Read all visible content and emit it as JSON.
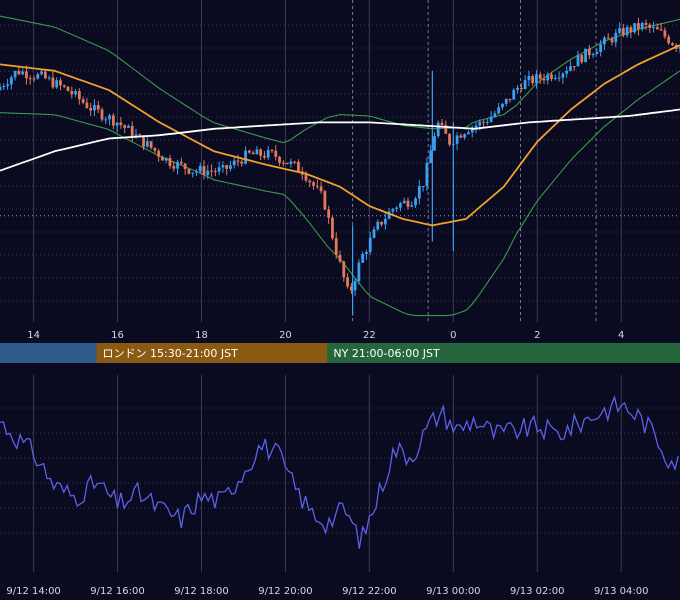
{
  "colors": {
    "background": "#0a0a20",
    "candle_up": "#3aa0f0",
    "candle_down": "#e07a5a",
    "bollinger": "#3a9a4a",
    "ma_mid": "#f0a030",
    "ma_long": "#ffffff",
    "rsi_line": "#5a62e8",
    "grid": "#3a3a55",
    "session_tokyo": "#2e5b8c",
    "session_london": "#8a5a12",
    "session_ny": "#25663d"
  },
  "chart_data": [
    {
      "type": "candlestick",
      "title": "",
      "indicators": [
        "bollinger-bands",
        "moving-average",
        "long-moving-average"
      ],
      "grid": true,
      "x_tick_labels": [
        "14",
        "16",
        "18",
        "20",
        "22",
        "0",
        "2",
        "4"
      ],
      "x_ticks_hours": [
        14,
        16,
        18,
        20,
        22,
        24,
        26,
        28
      ],
      "x_range_hours": [
        13.2,
        29.4
      ],
      "price_path": [
        [
          13.2,
          0.72
        ],
        [
          13.7,
          0.78
        ],
        [
          14.3,
          0.76
        ],
        [
          14.9,
          0.72
        ],
        [
          15.5,
          0.66
        ],
        [
          16.1,
          0.62
        ],
        [
          16.7,
          0.56
        ],
        [
          17.3,
          0.5
        ],
        [
          17.9,
          0.47
        ],
        [
          18.6,
          0.47
        ],
        [
          19.2,
          0.52
        ],
        [
          19.8,
          0.52
        ],
        [
          20.5,
          0.47
        ],
        [
          21.0,
          0.38
        ],
        [
          21.3,
          0.22
        ],
        [
          21.6,
          0.08
        ],
        [
          21.9,
          0.2
        ],
        [
          22.3,
          0.3
        ],
        [
          22.7,
          0.36
        ],
        [
          23.1,
          0.38
        ],
        [
          23.4,
          0.44
        ],
        [
          23.7,
          0.62
        ],
        [
          24.0,
          0.56
        ],
        [
          24.4,
          0.6
        ],
        [
          24.8,
          0.62
        ],
        [
          25.2,
          0.66
        ],
        [
          25.7,
          0.74
        ],
        [
          26.2,
          0.76
        ],
        [
          26.7,
          0.78
        ],
        [
          27.1,
          0.82
        ],
        [
          27.6,
          0.86
        ],
        [
          28.1,
          0.9
        ],
        [
          28.6,
          0.92
        ],
        [
          29.0,
          0.9
        ],
        [
          29.4,
          0.86
        ]
      ],
      "ma_path": [
        [
          13.2,
          0.8
        ],
        [
          14.5,
          0.78
        ],
        [
          15.8,
          0.72
        ],
        [
          17.0,
          0.62
        ],
        [
          18.3,
          0.53
        ],
        [
          19.5,
          0.49
        ],
        [
          20.5,
          0.46
        ],
        [
          21.3,
          0.42
        ],
        [
          22.0,
          0.36
        ],
        [
          22.8,
          0.32
        ],
        [
          23.5,
          0.3
        ],
        [
          24.3,
          0.32
        ],
        [
          25.2,
          0.42
        ],
        [
          26.0,
          0.56
        ],
        [
          26.8,
          0.66
        ],
        [
          27.6,
          0.74
        ],
        [
          28.4,
          0.8
        ],
        [
          29.4,
          0.86
        ]
      ],
      "long_ma_path": [
        [
          13.2,
          0.47
        ],
        [
          14.5,
          0.53
        ],
        [
          15.8,
          0.57
        ],
        [
          17.0,
          0.58
        ],
        [
          18.3,
          0.6
        ],
        [
          19.5,
          0.61
        ],
        [
          20.8,
          0.62
        ],
        [
          22.0,
          0.62
        ],
        [
          23.3,
          0.61
        ],
        [
          24.5,
          0.6
        ],
        [
          25.8,
          0.62
        ],
        [
          27.0,
          0.63
        ],
        [
          28.2,
          0.64
        ],
        [
          29.4,
          0.66
        ]
      ],
      "bollinger_width": [
        [
          13.2,
          0.15
        ],
        [
          16.0,
          0.12
        ],
        [
          18.0,
          0.09
        ],
        [
          20.0,
          0.08
        ],
        [
          21.0,
          0.2
        ],
        [
          22.0,
          0.28
        ],
        [
          23.5,
          0.3
        ],
        [
          24.5,
          0.28
        ],
        [
          25.5,
          0.2
        ],
        [
          27.0,
          0.15
        ],
        [
          29.4,
          0.08
        ]
      ],
      "horizontal_marker": 0.33
    },
    {
      "type": "line",
      "title": "",
      "series_color": "rsi_line",
      "grid": true,
      "x_tick_labels": [
        "9/12 14:00",
        "9/12 16:00",
        "9/12 18:00",
        "9/12 20:00",
        "9/12 22:00",
        "9/13 00:00",
        "9/13 02:00",
        "9/13 04:00"
      ],
      "x_ticks_hours": [
        14,
        16,
        18,
        20,
        22,
        24,
        26,
        28
      ],
      "value_path": [
        [
          13.2,
          0.75
        ],
        [
          13.6,
          0.66
        ],
        [
          14.0,
          0.58
        ],
        [
          14.5,
          0.4
        ],
        [
          15.0,
          0.34
        ],
        [
          15.5,
          0.42
        ],
        [
          16.0,
          0.3
        ],
        [
          16.5,
          0.36
        ],
        [
          17.0,
          0.28
        ],
        [
          17.5,
          0.22
        ],
        [
          18.0,
          0.34
        ],
        [
          18.5,
          0.32
        ],
        [
          19.0,
          0.48
        ],
        [
          19.4,
          0.62
        ],
        [
          19.8,
          0.58
        ],
        [
          20.2,
          0.4
        ],
        [
          20.6,
          0.26
        ],
        [
          21.0,
          0.2
        ],
        [
          21.4,
          0.28
        ],
        [
          21.8,
          0.1
        ],
        [
          22.2,
          0.34
        ],
        [
          22.6,
          0.6
        ],
        [
          23.0,
          0.56
        ],
        [
          23.4,
          0.72
        ],
        [
          23.7,
          0.8
        ],
        [
          24.1,
          0.7
        ],
        [
          24.5,
          0.76
        ],
        [
          25.0,
          0.68
        ],
        [
          25.5,
          0.7
        ],
        [
          26.0,
          0.72
        ],
        [
          26.5,
          0.68
        ],
        [
          27.0,
          0.74
        ],
        [
          27.5,
          0.8
        ],
        [
          28.0,
          0.84
        ],
        [
          28.4,
          0.78
        ],
        [
          28.8,
          0.68
        ],
        [
          29.1,
          0.56
        ],
        [
          29.4,
          0.52
        ]
      ]
    }
  ],
  "sessions": [
    {
      "label": "",
      "start_hour": 13.2,
      "end_hour": 15.5,
      "color": "session_tokyo"
    },
    {
      "label": "ロンドン 15:30-21:00 JST",
      "start_hour": 15.5,
      "end_hour": 21.0,
      "color": "session_london"
    },
    {
      "label": "NY 21:00-06:00 JST",
      "start_hour": 21.0,
      "end_hour": 29.4,
      "color": "session_ny"
    }
  ]
}
